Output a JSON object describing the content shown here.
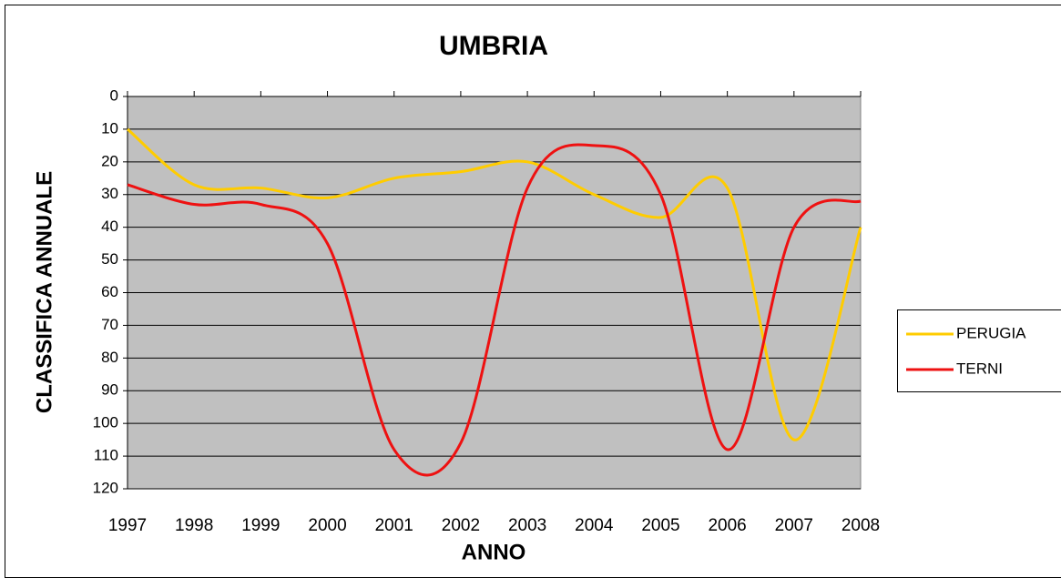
{
  "chart_data": {
    "type": "line",
    "title": "UMBRIA",
    "x_label": "ANNO",
    "y_label": "CLASSIFICA ANNUALE",
    "x": [
      1997,
      1998,
      1999,
      2000,
      2001,
      2002,
      2003,
      2004,
      2005,
      2006,
      2007,
      2008
    ],
    "series": [
      {
        "name": "PERUGIA",
        "color": "#ffcc00",
        "values": [
          10,
          27,
          28,
          31,
          25,
          23,
          20,
          30,
          37,
          28,
          105,
          40
        ]
      },
      {
        "name": "TERNI",
        "color": "#ee1111",
        "values": [
          27,
          33,
          33,
          45,
          108,
          106,
          28,
          15,
          30,
          108,
          40,
          32
        ]
      }
    ],
    "xlim": [
      1997,
      2008
    ],
    "xticks": [
      1997,
      1998,
      1999,
      2000,
      2001,
      2002,
      2003,
      2004,
      2005,
      2006,
      2007,
      2008
    ],
    "ylim": [
      0,
      120
    ],
    "yticks": [
      0,
      10,
      20,
      30,
      40,
      50,
      60,
      70,
      80,
      90,
      100,
      110,
      120
    ],
    "y_reversed": true,
    "grid": true,
    "smooth": true,
    "legend": "right"
  }
}
